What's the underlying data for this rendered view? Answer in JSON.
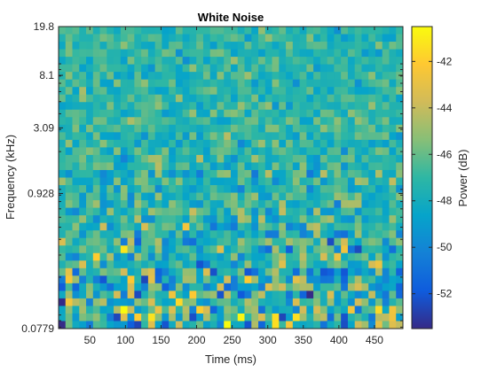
{
  "chart_data": {
    "type": "heatmap",
    "title": "White Noise",
    "xlabel": "Time (ms)",
    "ylabel": "Frequency (kHz)",
    "colorbar_label": "Power (dB)",
    "colormap": "parula",
    "x_range": [
      6,
      490
    ],
    "x_ticks": [
      "50",
      "100",
      "150",
      "200",
      "250",
      "300",
      "350",
      "400",
      "450"
    ],
    "y_scale": "log",
    "y_range": [
      0.0779,
      19.8
    ],
    "y_ticks": [
      "0.0779",
      "0.928",
      "3.09",
      "8.1",
      "19.8"
    ],
    "color_range": [
      -53.5,
      -40.5
    ],
    "colorbar_ticks": [
      "-42",
      "-44",
      "-46",
      "-48",
      "-50",
      "-52"
    ],
    "grid_columns": 50,
    "grid_rows": 40,
    "description_values": "Time-frequency power grid of white noise; values mostly between -46 and -48 dB, with higher variance (range roughly -53 to -41 dB) at low frequencies."
  },
  "colors": {
    "parula": [
      "#352a87",
      "#0f5cdd",
      "#1481d6",
      "#06a4ca",
      "#2eb7a4",
      "#87bf77",
      "#d1bb59",
      "#fec832",
      "#f9fb0e"
    ]
  }
}
